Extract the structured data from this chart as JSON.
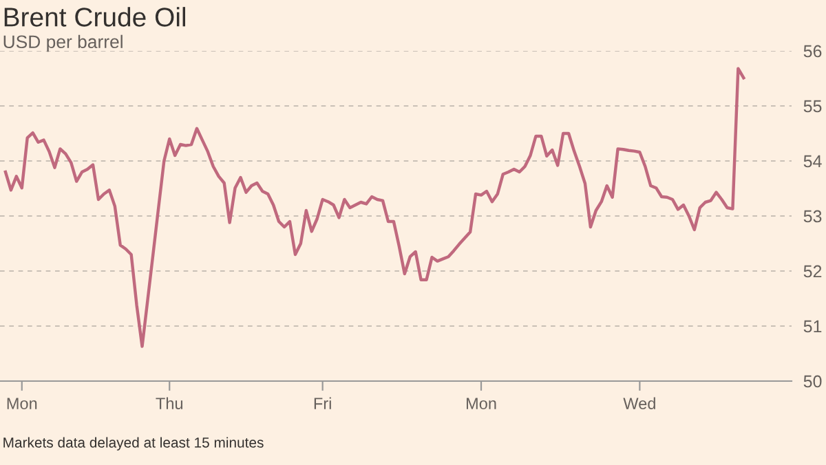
{
  "chart_data": {
    "type": "line",
    "title": "Brent Crude Oil",
    "subtitle": "USD per barrel",
    "annotations": [
      "Markets data delayed at least 15 minutes"
    ],
    "categories": [
      null,
      null,
      null,
      "Mon",
      null,
      null,
      null,
      null,
      null,
      null,
      null,
      null,
      null,
      null,
      null,
      null,
      null,
      null,
      null,
      null,
      null,
      null,
      null,
      null,
      null,
      null,
      null,
      null,
      null,
      null,
      "Thu",
      null,
      null,
      null,
      null,
      null,
      null,
      null,
      null,
      null,
      null,
      null,
      null,
      null,
      null,
      null,
      null,
      null,
      null,
      null,
      null,
      null,
      null,
      null,
      null,
      null,
      null,
      null,
      "Fri",
      null,
      null,
      null,
      null,
      null,
      null,
      null,
      null,
      null,
      null,
      null,
      null,
      null,
      null,
      null,
      null,
      null,
      null,
      null,
      null,
      null,
      null,
      null,
      null,
      null,
      null,
      null,
      null,
      "Mon",
      null,
      null,
      null,
      null,
      null,
      null,
      null,
      null,
      null,
      null,
      null,
      null,
      null,
      null,
      null,
      null,
      null,
      null,
      null,
      null,
      null,
      null,
      null,
      null,
      null,
      null,
      null,
      null,
      "Wed",
      null,
      null,
      null,
      null,
      null,
      null,
      null,
      null,
      null,
      null,
      null,
      null,
      null,
      null,
      null,
      null,
      null,
      null,
      null
    ],
    "series": [
      {
        "color": "#c0697e",
        "values": [
          53.8,
          53.47,
          53.72,
          53.51,
          54.42,
          54.51,
          54.34,
          54.38,
          54.17,
          53.88,
          54.22,
          54.13,
          53.97,
          53.63,
          53.8,
          53.85,
          53.93,
          53.3,
          53.4,
          53.47,
          53.18,
          52.47,
          52.4,
          52.3,
          51.38,
          50.63,
          51.47,
          52.31,
          53.16,
          54.0,
          54.4,
          54.1,
          54.3,
          54.28,
          54.3,
          54.59,
          54.38,
          54.17,
          53.9,
          53.72,
          53.6,
          52.88,
          53.51,
          53.7,
          53.43,
          53.55,
          53.6,
          53.45,
          53.4,
          53.2,
          52.9,
          52.8,
          52.9,
          52.3,
          52.5,
          53.1,
          52.72,
          52.95,
          53.3,
          53.26,
          53.2,
          52.97,
          53.3,
          53.15,
          53.2,
          53.25,
          53.22,
          53.35,
          53.3,
          53.28,
          52.9,
          52.9,
          52.45,
          51.95,
          52.26,
          52.35,
          51.84,
          51.84,
          52.25,
          52.18,
          52.22,
          52.26,
          52.37,
          52.49,
          52.6,
          52.71,
          53.4,
          53.38,
          53.45,
          53.26,
          53.4,
          53.76,
          53.8,
          53.85,
          53.8,
          53.9,
          54.1,
          54.45,
          54.45,
          54.09,
          54.2,
          53.92,
          54.5,
          54.5,
          54.18,
          53.9,
          53.59,
          52.8,
          53.1,
          53.26,
          53.55,
          53.34,
          54.22,
          54.21,
          54.19,
          54.18,
          54.16,
          53.9,
          53.55,
          53.51,
          53.35,
          53.34,
          53.3,
          53.12,
          53.2,
          53.0,
          52.75,
          53.15,
          53.25,
          53.28,
          53.43,
          53.3,
          53.15,
          53.13,
          55.68,
          55.51
        ]
      }
    ],
    "ylim": [
      50,
      56
    ],
    "yticks": [
      50,
      51,
      52,
      53,
      54,
      55,
      56
    ],
    "grid": "y",
    "legend": false,
    "line_style": "solid"
  }
}
